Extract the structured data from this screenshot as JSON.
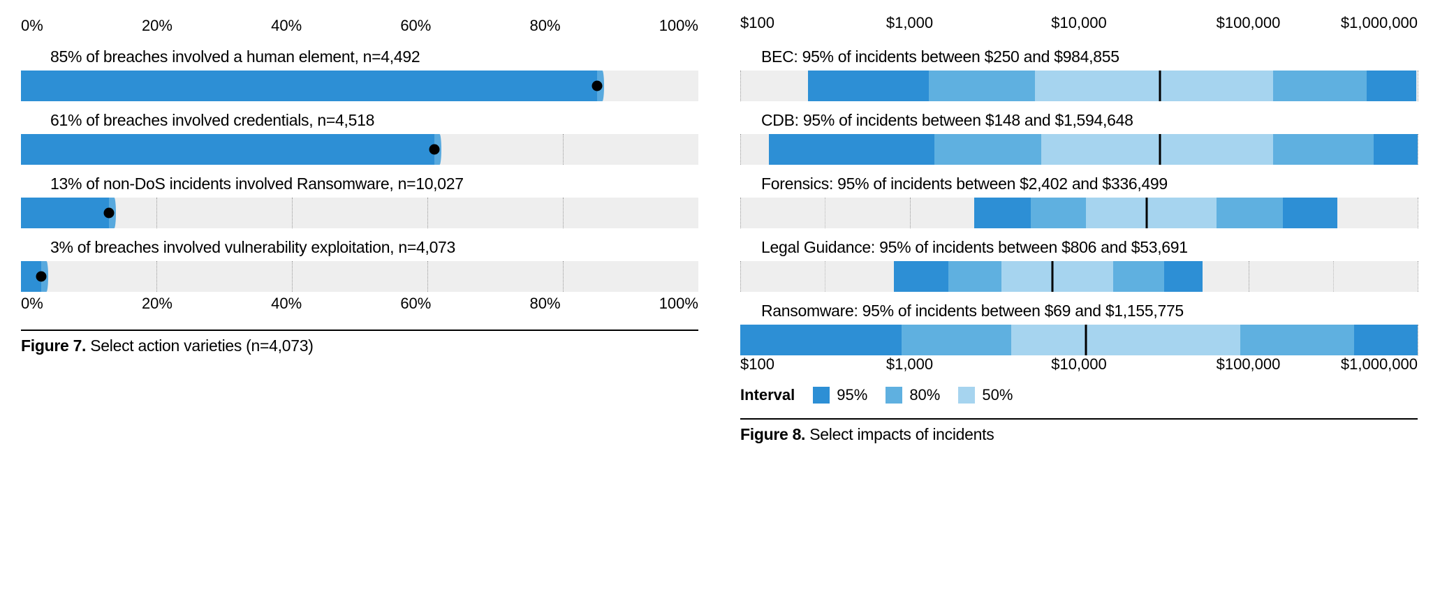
{
  "colors": {
    "bar_fill": "#2d8fd5",
    "bar_tail": "#58a9de",
    "track": "#eeeeee",
    "dot": "#000000",
    "grid": "#999999",
    "interval95": "#2d8fd5",
    "interval80": "#5fb0e0",
    "interval50": "#a6d4ef",
    "median": "#000000",
    "rule": "#000000",
    "text": "#000000"
  },
  "figure7": {
    "type": "bar",
    "axis_ticks": [
      "0%",
      "20%",
      "40%",
      "60%",
      "80%",
      "100%"
    ],
    "xlim": [
      0,
      100
    ],
    "bars": [
      {
        "label": "85% of breaches involved a human element, n=4,492",
        "value": 85
      },
      {
        "label": "61% of breaches involved credentials, n=4,518",
        "value": 61
      },
      {
        "label": "13% of non-DoS incidents involved Ransomware, n=10,027",
        "value": 13
      },
      {
        "label": "3% of breaches involved vulnerability exploitation, n=4,073",
        "value": 3
      }
    ],
    "grid_positions": [
      0,
      20,
      40,
      60,
      80,
      100
    ],
    "caption_bold": "Figure 7.",
    "caption_rest": " Select action varieties (n=4,073)"
  },
  "figure8": {
    "type": "range",
    "axis_min": 100,
    "axis_max": 1000000,
    "axis_ticks": [
      {
        "value": 100,
        "label": "$100"
      },
      {
        "value": 1000,
        "label": "$1,000"
      },
      {
        "value": 10000,
        "label": "$10,000"
      },
      {
        "value": 100000,
        "label": "$100,000"
      },
      {
        "value": 1000000,
        "label": "$1,000,000"
      }
    ],
    "grid_values": [
      100,
      1000,
      10000,
      100000,
      1000000
    ],
    "grid_minor_between": 1,
    "items": [
      {
        "label": "BEC: 95% of incidents between $250 and $984,855",
        "p025": 250,
        "p10": 1300,
        "p25": 5500,
        "median": 30000,
        "p75": 140000,
        "p90": 500000,
        "p975": 984855
      },
      {
        "label": "CDB: 95% of incidents between $148 and $1,594,648",
        "p025": 148,
        "p10": 1400,
        "p25": 6000,
        "median": 30000,
        "p75": 140000,
        "p90": 550000,
        "p975": 1594648
      },
      {
        "label": "Forensics: 95% of incidents between $2,402 and $336,499",
        "p025": 2402,
        "p10": 5200,
        "p25": 11000,
        "median": 25000,
        "p75": 65000,
        "p90": 160000,
        "p975": 336499
      },
      {
        "label": "Legal Guidance: 95% of incidents between $806 and $53,691",
        "p025": 806,
        "p10": 1700,
        "p25": 3500,
        "median": 7000,
        "p75": 16000,
        "p90": 32000,
        "p975": 53691
      },
      {
        "label": "Ransomware: 95% of incidents between $69 and $1,155,775",
        "p025": 69,
        "p10": 900,
        "p25": 4000,
        "median": 11000,
        "p75": 90000,
        "p90": 420000,
        "p975": 1155775
      }
    ],
    "legend_title": "Interval",
    "legend": [
      {
        "label": "95%",
        "color_key": "interval95"
      },
      {
        "label": "80%",
        "color_key": "interval80"
      },
      {
        "label": "50%",
        "color_key": "interval50"
      }
    ],
    "caption_bold": "Figure 8.",
    "caption_rest": " Select impacts of incidents"
  }
}
